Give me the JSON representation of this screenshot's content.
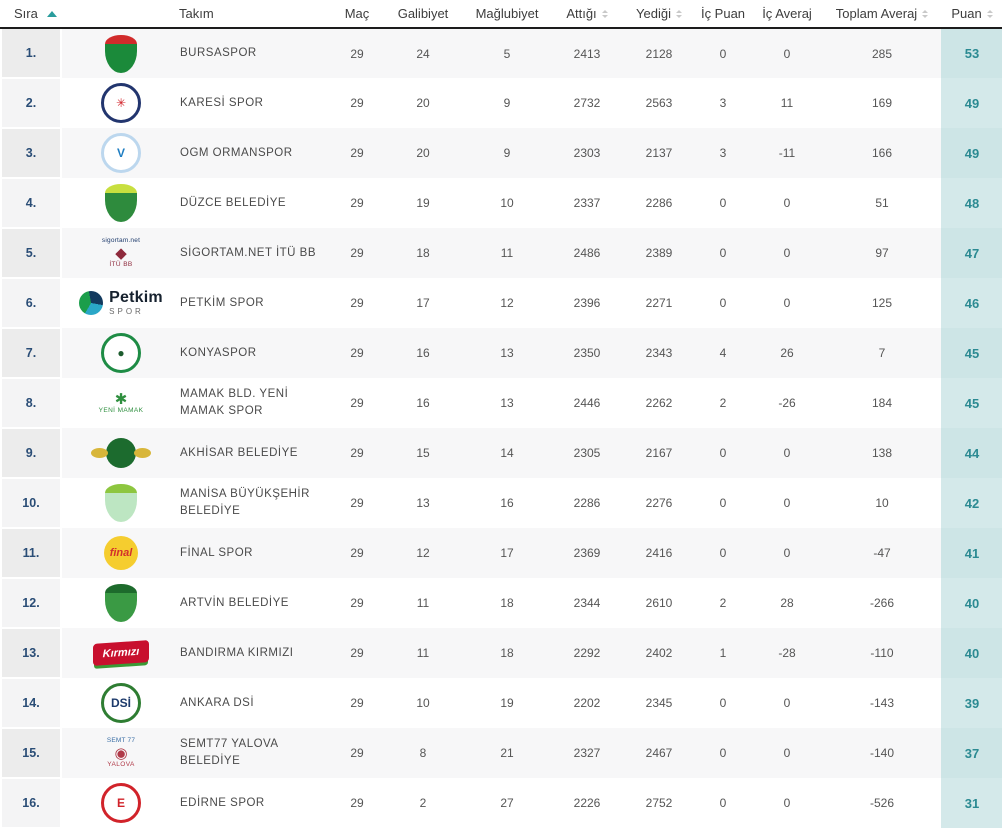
{
  "theme": {
    "accent_teal": "#2b8a92",
    "puan_column_bg": "#cfe6e7",
    "rank_text_color": "#2a4d76",
    "header_border": "#1c1c1c",
    "row_stripe": "#f7f7f8",
    "sort_active_color": "#2a9d9d",
    "sort_inactive_color": "#c9c9c9"
  },
  "table": {
    "columns": [
      {
        "key": "rank",
        "label": "Sıra",
        "sort": "asc",
        "align": "left"
      },
      {
        "key": "team",
        "label": "Takım",
        "sort": null,
        "align": "left"
      },
      {
        "key": "mac",
        "label": "Maç",
        "sort": null
      },
      {
        "key": "galibiyet",
        "label": "Galibiyet",
        "sort": null
      },
      {
        "key": "maglubiyet",
        "label": "Mağlubiyet",
        "sort": null
      },
      {
        "key": "attigi",
        "label": "Attığı",
        "sort": "both"
      },
      {
        "key": "yedigi",
        "label": "Yediği",
        "sort": "both"
      },
      {
        "key": "icpuan",
        "label": "İç Puan",
        "sort": null
      },
      {
        "key": "icaveraj",
        "label": "İç Averaj",
        "sort": null
      },
      {
        "key": "toplamaveraj",
        "label": "Toplam Averaj",
        "sort": "both"
      },
      {
        "key": "puan",
        "label": "Puan",
        "sort": "both"
      }
    ],
    "rows": [
      {
        "rank": "1.",
        "team": "BURSASPOR",
        "mac": "29",
        "galibiyet": "24",
        "maglubiyet": "5",
        "attigi": "2413",
        "yedigi": "2128",
        "icpuan": "0",
        "icaveraj": "0",
        "toplamaveraj": "285",
        "puan": "53",
        "logo": {
          "shape": "shield",
          "c1": "#1b8a3a",
          "c2": "#d12b2b",
          "text": ""
        }
      },
      {
        "rank": "2.",
        "team": "KARESİ SPOR",
        "mac": "29",
        "galibiyet": "20",
        "maglubiyet": "9",
        "attigi": "2732",
        "yedigi": "2563",
        "icpuan": "3",
        "icaveraj": "11",
        "toplamaveraj": "169",
        "puan": "49",
        "logo": {
          "shape": "circle",
          "c1": "#22356e",
          "c2": "#d1232a",
          "text": "✳"
        }
      },
      {
        "rank": "3.",
        "team": "OGM ORMANSPOR",
        "mac": "29",
        "galibiyet": "20",
        "maglubiyet": "9",
        "attigi": "2303",
        "yedigi": "2137",
        "icpuan": "3",
        "icaveraj": "-11",
        "toplamaveraj": "166",
        "puan": "49",
        "logo": {
          "shape": "circle",
          "c1": "#bcd7ee",
          "c2": "#1f7ec2",
          "text": "V"
        }
      },
      {
        "rank": "4.",
        "team": "DÜZCE BELEDİYE",
        "mac": "29",
        "galibiyet": "19",
        "maglubiyet": "10",
        "attigi": "2337",
        "yedigi": "2286",
        "icpuan": "0",
        "icaveraj": "0",
        "toplamaveraj": "51",
        "puan": "48",
        "logo": {
          "shape": "shield",
          "c1": "#2e8b3d",
          "c2": "#c8df3f",
          "text": ""
        }
      },
      {
        "rank": "5.",
        "team": "SİGORTAM.NET İTÜ BB",
        "mac": "29",
        "galibiyet": "18",
        "maglubiyet": "11",
        "attigi": "2486",
        "yedigi": "2389",
        "icpuan": "0",
        "icaveraj": "0",
        "toplamaveraj": "97",
        "puan": "47",
        "logo": {
          "shape": "stacked",
          "c1": "#8e2a3c",
          "c2": "#1d3a6b",
          "top": "sigortam.net",
          "glyph": "◆",
          "sub": "İTÜ BB"
        }
      },
      {
        "rank": "6.",
        "team": "PETKİM SPOR",
        "mac": "29",
        "galibiyet": "17",
        "maglubiyet": "12",
        "attigi": "2396",
        "yedigi": "2271",
        "icpuan": "0",
        "icaveraj": "0",
        "toplamaveraj": "125",
        "puan": "46",
        "logo": {
          "shape": "wordmark",
          "c1": "#1b9e4b",
          "c2": "#123a5e",
          "text": "Petkim",
          "sub": "SPOR"
        }
      },
      {
        "rank": "7.",
        "team": "KONYASPOR",
        "mac": "29",
        "galibiyet": "16",
        "maglubiyet": "13",
        "attigi": "2350",
        "yedigi": "2343",
        "icpuan": "4",
        "icaveraj": "26",
        "toplamaveraj": "7",
        "puan": "45",
        "logo": {
          "shape": "circle",
          "c1": "#1e8c45",
          "c2": "#1d5c2e",
          "text": "●"
        }
      },
      {
        "rank": "8.",
        "team": "MAMAK BLD. YENİ MAMAK SPOR",
        "mac": "29",
        "galibiyet": "16",
        "maglubiyet": "13",
        "attigi": "2446",
        "yedigi": "2262",
        "icpuan": "2",
        "icaveraj": "-26",
        "toplamaveraj": "184",
        "puan": "45",
        "logo": {
          "shape": "stacked",
          "c1": "#2f8f3f",
          "c2": "#2f8f3f",
          "top": "",
          "glyph": "✱",
          "sub": "YENİ MAMAK"
        }
      },
      {
        "rank": "9.",
        "team": "AKHİSAR BELEDİYE",
        "mac": "29",
        "galibiyet": "15",
        "maglubiyet": "14",
        "attigi": "2305",
        "yedigi": "2167",
        "icpuan": "0",
        "icaveraj": "0",
        "toplamaveraj": "138",
        "puan": "44",
        "logo": {
          "shape": "winged",
          "c1": "#1c6b2e",
          "c2": "#d8b63a",
          "text": ""
        }
      },
      {
        "rank": "10.",
        "team": "MANİSA BÜYÜKŞEHİR BELEDİYE",
        "mac": "29",
        "galibiyet": "13",
        "maglubiyet": "16",
        "attigi": "2286",
        "yedigi": "2276",
        "icpuan": "0",
        "icaveraj": "0",
        "toplamaveraj": "10",
        "puan": "42",
        "logo": {
          "shape": "shield",
          "c1": "#bde6c2",
          "c2": "#8dc63f",
          "text": ""
        }
      },
      {
        "rank": "11.",
        "team": "FİNAL SPOR",
        "mac": "29",
        "galibiyet": "12",
        "maglubiyet": "17",
        "attigi": "2369",
        "yedigi": "2416",
        "icpuan": "0",
        "icaveraj": "0",
        "toplamaveraj": "-47",
        "puan": "41",
        "logo": {
          "shape": "solid",
          "c1": "#f5cd2f",
          "c2": "#d2302c",
          "text": "final"
        }
      },
      {
        "rank": "12.",
        "team": "ARTVİN BELEDİYE",
        "mac": "29",
        "galibiyet": "11",
        "maglubiyet": "18",
        "attigi": "2344",
        "yedigi": "2610",
        "icpuan": "2",
        "icaveraj": "28",
        "toplamaveraj": "-266",
        "puan": "40",
        "logo": {
          "shape": "shield",
          "c1": "#3a9a44",
          "c2": "#1d6b2c",
          "text": ""
        }
      },
      {
        "rank": "13.",
        "team": "BANDIRMA KIRMIZI",
        "mac": "29",
        "galibiyet": "11",
        "maglubiyet": "18",
        "attigi": "2292",
        "yedigi": "2402",
        "icpuan": "1",
        "icaveraj": "-28",
        "toplamaveraj": "-110",
        "puan": "40",
        "logo": {
          "shape": "banner",
          "c1": "#c8102e",
          "c2": "#3a9a35",
          "text": "Kırmızı"
        }
      },
      {
        "rank": "14.",
        "team": "ANKARA DSİ",
        "mac": "29",
        "galibiyet": "10",
        "maglubiyet": "19",
        "attigi": "2202",
        "yedigi": "2345",
        "icpuan": "0",
        "icaveraj": "0",
        "toplamaveraj": "-143",
        "puan": "39",
        "logo": {
          "shape": "circle",
          "c1": "#2e7d32",
          "c2": "#1d3a6b",
          "text": "DSİ"
        }
      },
      {
        "rank": "15.",
        "team": "SEMT77 YALOVA BELEDİYE",
        "mac": "29",
        "galibiyet": "8",
        "maglubiyet": "21",
        "attigi": "2327",
        "yedigi": "2467",
        "icpuan": "0",
        "icaveraj": "0",
        "toplamaveraj": "-140",
        "puan": "37",
        "logo": {
          "shape": "stacked",
          "c1": "#b03a48",
          "c2": "#3a6ea5",
          "top": "SEMT 77",
          "glyph": "◉",
          "sub": "YALOVA"
        }
      },
      {
        "rank": "16.",
        "team": "EDİRNE SPOR",
        "mac": "29",
        "galibiyet": "2",
        "maglubiyet": "27",
        "attigi": "2226",
        "yedigi": "2752",
        "icpuan": "0",
        "icaveraj": "0",
        "toplamaveraj": "-526",
        "puan": "31",
        "logo": {
          "shape": "circle",
          "c1": "#d1232a",
          "c2": "#d1232a",
          "text": "E"
        }
      }
    ]
  }
}
